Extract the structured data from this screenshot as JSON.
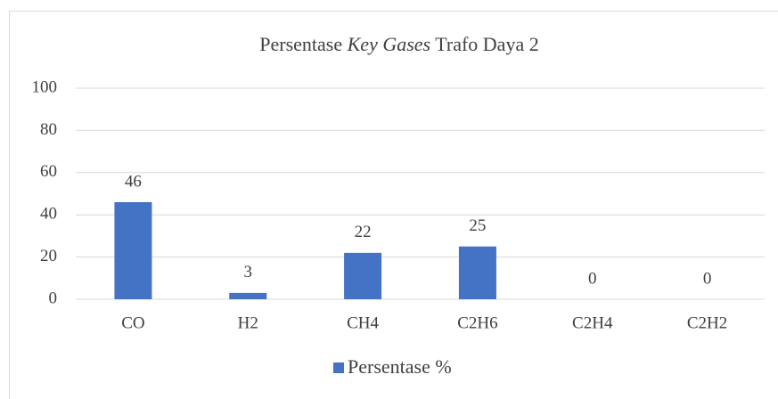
{
  "chart_data": {
    "type": "bar",
    "title": [
      {
        "text": "Persentase "
      },
      {
        "text": "Key Gases",
        "italic": true
      },
      {
        "text": " Trafo Daya 2"
      }
    ],
    "categories": [
      "CO",
      "H2",
      "CH4",
      "C2H6",
      "C2H4",
      "C2H2"
    ],
    "series": [
      {
        "name": "Persentase %",
        "color": "#4472c4",
        "values": [
          46,
          3,
          22,
          25,
          0,
          0
        ]
      }
    ],
    "ylim": [
      0,
      100
    ],
    "yticks": [
      0,
      20,
      40,
      60,
      80,
      100
    ],
    "grid": true,
    "legend": "bottom"
  }
}
